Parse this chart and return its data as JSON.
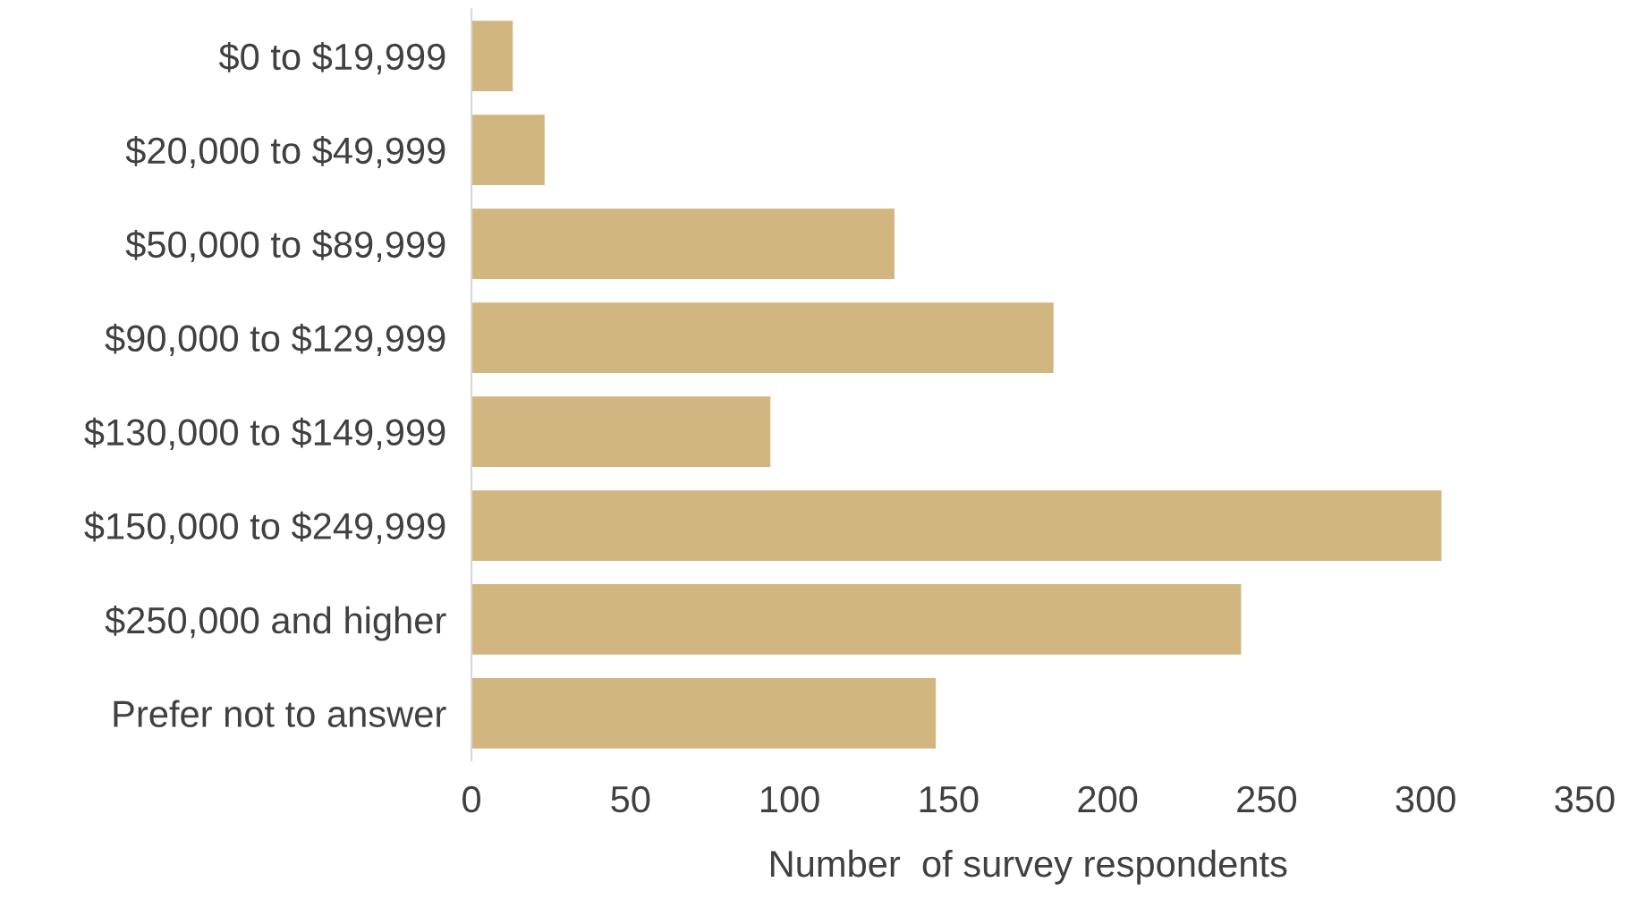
{
  "chart_data": {
    "type": "bar",
    "orientation": "horizontal",
    "xlabel": "Number  of survey respondents",
    "categories": [
      "$0 to $19,999",
      "$20,000 to $49,999",
      "$50,000 to $89,999",
      "$90,000 to $129,999",
      "$130,000 to $149,999",
      "$150,000 to $249,999",
      "$250,000 and higher",
      "Prefer not to answer"
    ],
    "values": [
      13,
      23,
      133,
      183,
      94,
      305,
      242,
      146
    ],
    "color": "#d2b67f",
    "xlim": [
      0,
      350
    ],
    "xticks": [
      0,
      50,
      100,
      150,
      200,
      250,
      300,
      350
    ],
    "grid": false
  }
}
